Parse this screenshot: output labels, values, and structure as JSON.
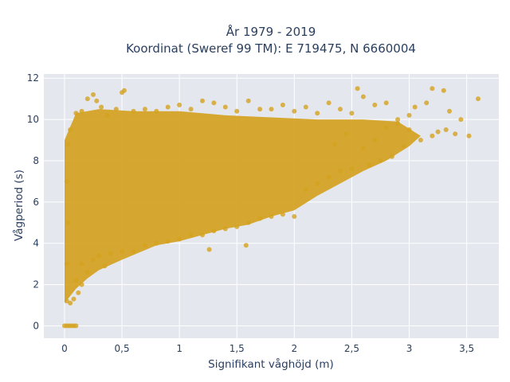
{
  "chart_data": {
    "type": "scatter",
    "title_line1": "År 1979 - 2019",
    "title_line2": "Koordinat (Sweref 99 TM): E 719475, N 6660004",
    "xlabel": "Signifikant våghöjd (m)",
    "ylabel": "Vågperiod (s)",
    "xlim": [
      -0.18,
      3.78
    ],
    "ylim": [
      -0.6,
      12.2
    ],
    "x_ticks": [
      0,
      0.5,
      1,
      1.5,
      2,
      2.5,
      3,
      3.5
    ],
    "x_tick_labels": [
      "0",
      "0,5",
      "1",
      "1,5",
      "2",
      "2,5",
      "3",
      "3,5"
    ],
    "y_ticks": [
      0,
      2,
      4,
      6,
      8,
      10,
      12
    ],
    "y_tick_labels": [
      "0",
      "2",
      "4",
      "6",
      "8",
      "10",
      "12"
    ],
    "grid": true,
    "marker_color": "#d4a21f",
    "plot_bg": "#e5e7ee",
    "points": [
      [
        0,
        0
      ],
      [
        0.02,
        0
      ],
      [
        0.04,
        0
      ],
      [
        0.06,
        0
      ],
      [
        0.08,
        0
      ],
      [
        0.1,
        0
      ],
      [
        0.02,
        1.2
      ],
      [
        0.05,
        1.1
      ],
      [
        0.08,
        1.3
      ],
      [
        0.12,
        1.6
      ],
      [
        0.15,
        2.0
      ],
      [
        0.02,
        3.0
      ],
      [
        0.03,
        5.0
      ],
      [
        0.02,
        7.0
      ],
      [
        0.03,
        8.8
      ],
      [
        0.05,
        9.5
      ],
      [
        0.1,
        2.2
      ],
      [
        0.15,
        3.0
      ],
      [
        0.2,
        2.6
      ],
      [
        0.25,
        3.2
      ],
      [
        0.3,
        3.4
      ],
      [
        0.35,
        2.9
      ],
      [
        0.4,
        3.5
      ],
      [
        0.5,
        3.6
      ],
      [
        0.6,
        3.6
      ],
      [
        0.7,
        3.9
      ],
      [
        0.8,
        4.0
      ],
      [
        0.9,
        4.1
      ],
      [
        1.0,
        4.2
      ],
      [
        1.1,
        4.4
      ],
      [
        1.2,
        4.4
      ],
      [
        1.3,
        4.6
      ],
      [
        1.4,
        4.7
      ],
      [
        1.5,
        4.8
      ],
      [
        1.6,
        5.0
      ],
      [
        1.7,
        5.2
      ],
      [
        1.8,
        5.3
      ],
      [
        1.9,
        5.4
      ],
      [
        2.0,
        5.3
      ],
      [
        1.58,
        3.9
      ],
      [
        1.26,
        3.7
      ],
      [
        0.1,
        10.3
      ],
      [
        0.15,
        10.4
      ],
      [
        0.2,
        11.0
      ],
      [
        0.25,
        11.2
      ],
      [
        0.28,
        10.9
      ],
      [
        0.32,
        10.6
      ],
      [
        0.37,
        10.2
      ],
      [
        0.45,
        10.5
      ],
      [
        0.5,
        11.3
      ],
      [
        0.52,
        11.4
      ],
      [
        0.6,
        10.4
      ],
      [
        0.7,
        10.5
      ],
      [
        0.8,
        10.4
      ],
      [
        0.9,
        10.6
      ],
      [
        1.0,
        10.7
      ],
      [
        1.1,
        10.5
      ],
      [
        1.2,
        10.9
      ],
      [
        1.3,
        10.8
      ],
      [
        1.4,
        10.6
      ],
      [
        1.5,
        10.4
      ],
      [
        1.6,
        10.9
      ],
      [
        1.7,
        10.5
      ],
      [
        1.8,
        10.5
      ],
      [
        1.9,
        10.7
      ],
      [
        2.0,
        10.4
      ],
      [
        2.1,
        10.6
      ],
      [
        2.2,
        10.3
      ],
      [
        2.3,
        10.8
      ],
      [
        2.4,
        10.5
      ],
      [
        2.5,
        10.3
      ],
      [
        2.55,
        11.5
      ],
      [
        2.6,
        11.1
      ],
      [
        2.7,
        10.7
      ],
      [
        2.8,
        10.8
      ],
      [
        2.9,
        10.0
      ],
      [
        3.0,
        10.2
      ],
      [
        3.05,
        10.6
      ],
      [
        3.15,
        10.8
      ],
      [
        3.2,
        11.5
      ],
      [
        3.3,
        11.4
      ],
      [
        3.35,
        10.4
      ],
      [
        3.45,
        10.0
      ],
      [
        3.6,
        11.0
      ],
      [
        3.52,
        9.2
      ],
      [
        3.25,
        9.4
      ],
      [
        3.1,
        9.0
      ],
      [
        2.95,
        8.7
      ],
      [
        2.85,
        8.2
      ],
      [
        2.75,
        8.0
      ],
      [
        2.65,
        7.8
      ],
      [
        2.5,
        7.6
      ],
      [
        2.4,
        7.5
      ],
      [
        2.3,
        7.2
      ],
      [
        2.2,
        6.9
      ],
      [
        2.1,
        6.6
      ],
      [
        3.0,
        9.5
      ],
      [
        2.9,
        9.8
      ],
      [
        2.8,
        9.6
      ],
      [
        2.7,
        9.0
      ],
      [
        2.6,
        8.6
      ],
      [
        3.32,
        9.5
      ],
      [
        3.4,
        9.3
      ],
      [
        3.2,
        9.2
      ],
      [
        2.45,
        9.3
      ],
      [
        2.35,
        8.8
      ]
    ]
  }
}
